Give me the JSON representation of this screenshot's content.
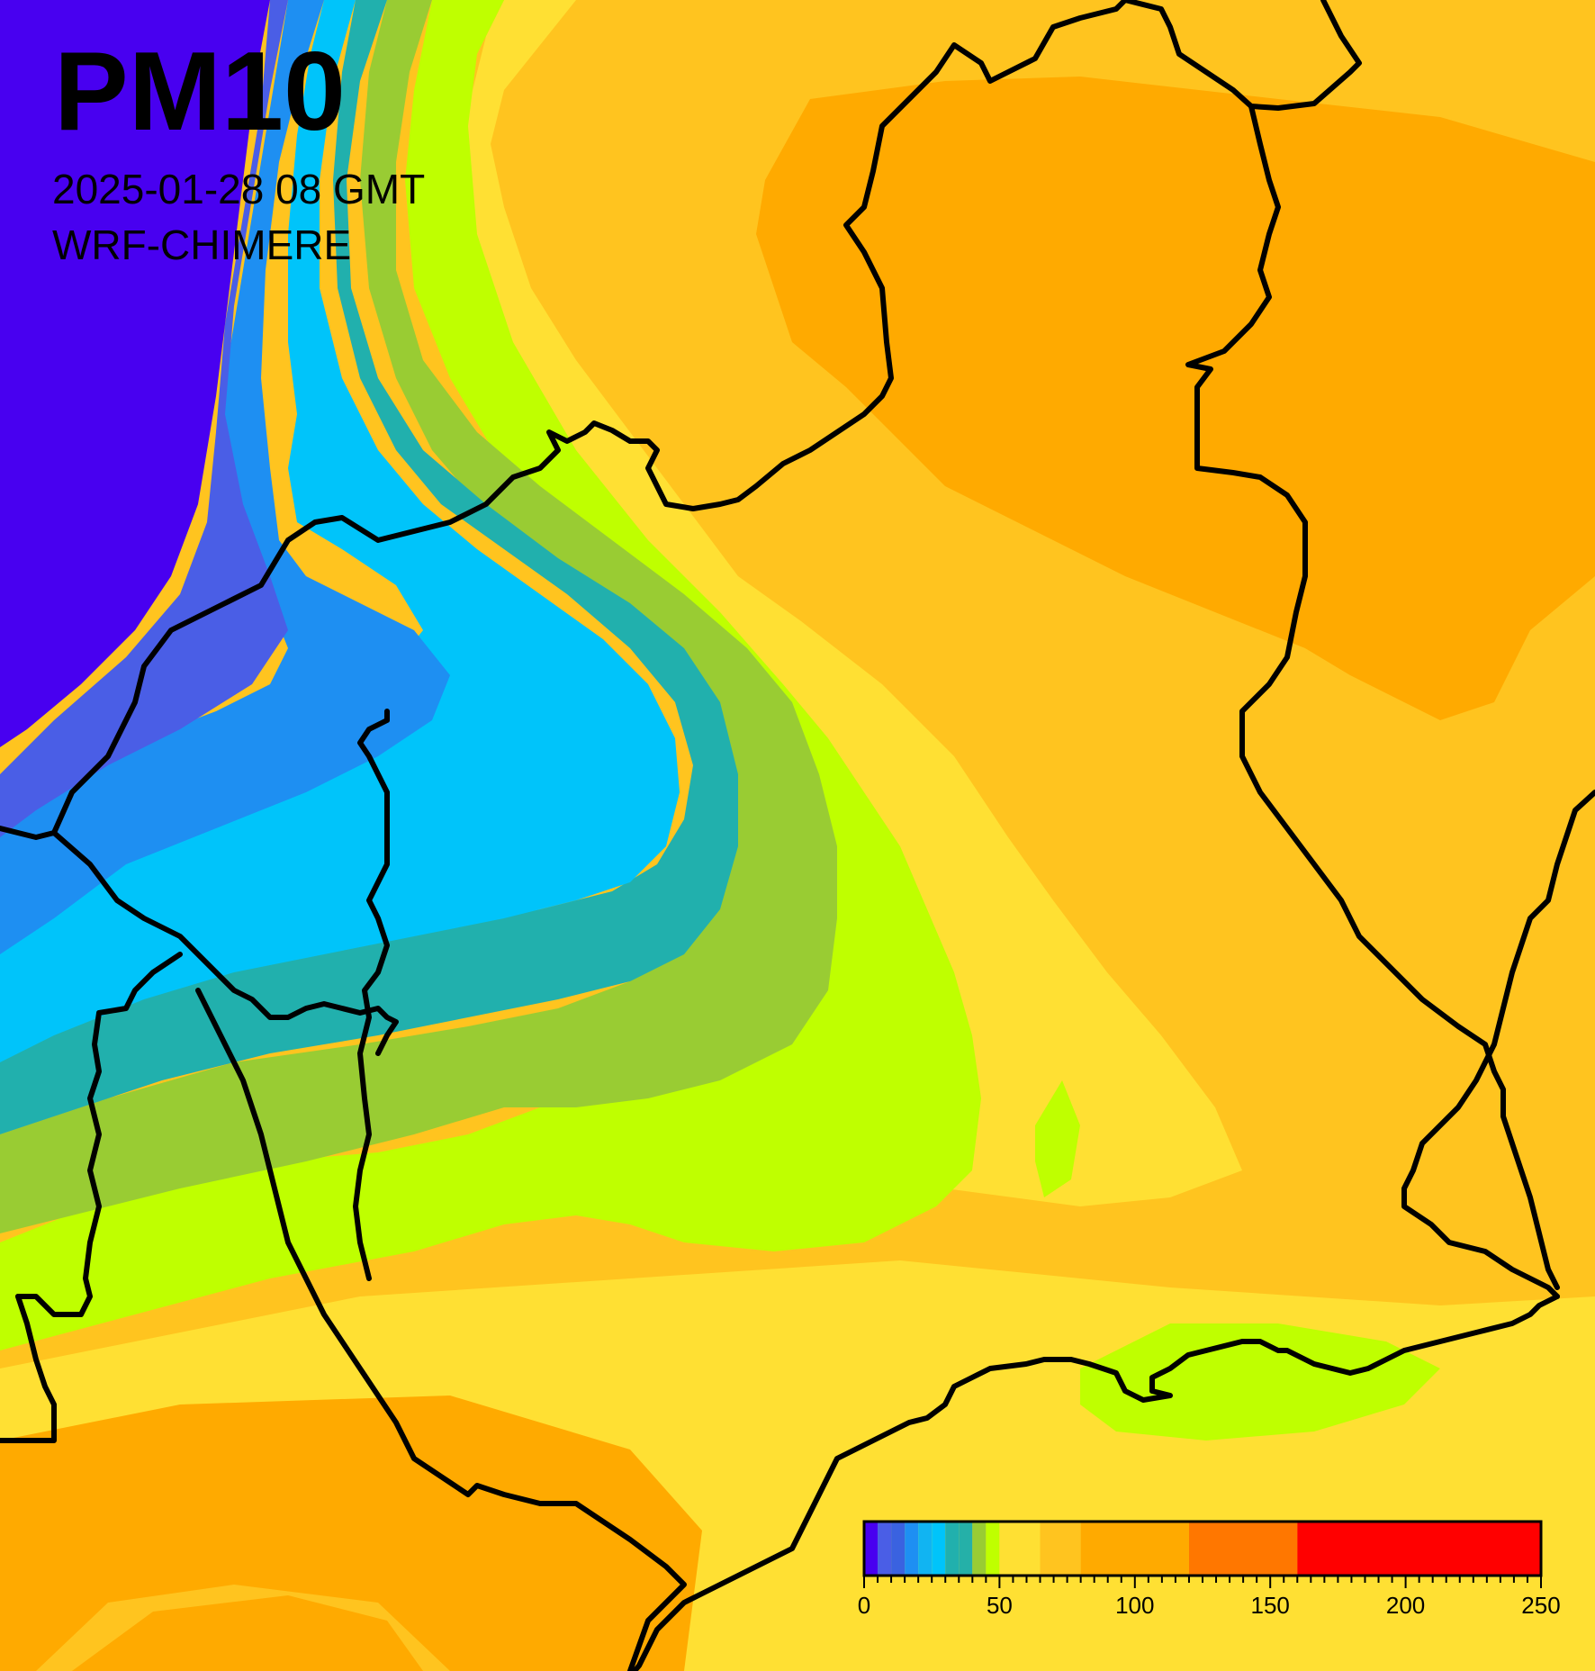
{
  "title": "PM10",
  "timestamp": "2025-01-28 08 GMT",
  "model": "WRF-CHIMERE",
  "colorbar": {
    "min": 0,
    "max": 250,
    "tick_labels": [
      "0",
      "50",
      "100",
      "150",
      "200",
      "250"
    ],
    "tick_values": [
      0,
      50,
      100,
      150,
      200,
      250
    ],
    "minor_tick_step": 5,
    "bands": [
      {
        "from": 0,
        "to": 5,
        "color": "#4800f0"
      },
      {
        "from": 5,
        "to": 10,
        "color": "#4a5ee6"
      },
      {
        "from": 10,
        "to": 15,
        "color": "#3a62e0"
      },
      {
        "from": 15,
        "to": 20,
        "color": "#1e8ff2"
      },
      {
        "from": 20,
        "to": 25,
        "color": "#11b4f2"
      },
      {
        "from": 25,
        "to": 30,
        "color": "#00c4fa"
      },
      {
        "from": 30,
        "to": 35,
        "color": "#21b0ad"
      },
      {
        "from": 35,
        "to": 40,
        "color": "#25b0a8"
      },
      {
        "from": 40,
        "to": 45,
        "color": "#99cc33"
      },
      {
        "from": 45,
        "to": 50,
        "color": "#bfff00"
      },
      {
        "from": 50,
        "to": 65,
        "color": "#ffe033"
      },
      {
        "from": 65,
        "to": 80,
        "color": "#ffc41f"
      },
      {
        "from": 80,
        "to": 120,
        "color": "#ffaa00"
      },
      {
        "from": 120,
        "to": 160,
        "color": "#ff7700"
      },
      {
        "from": 160,
        "to": 250,
        "color": "#ff0000"
      }
    ]
  },
  "map_colors": {
    "deep_violet": "#4800f0",
    "blue_violet": "#4a5ee6",
    "blue": "#1e8ff2",
    "cyan": "#00c4fa",
    "teal": "#21b0ad",
    "olive_green": "#99cc33",
    "lime": "#bfff00",
    "yellow": "#ffe033",
    "gold": "#ffc41f",
    "orange": "#ffaa00",
    "border": "#000000"
  }
}
